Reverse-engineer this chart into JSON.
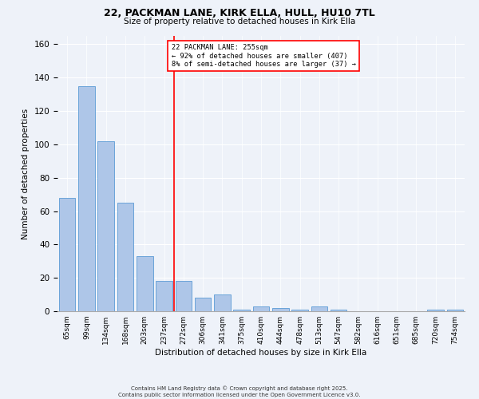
{
  "title": "22, PACKMAN LANE, KIRK ELLA, HULL, HU10 7TL",
  "subtitle": "Size of property relative to detached houses in Kirk Ella",
  "xlabel": "Distribution of detached houses by size in Kirk Ella",
  "ylabel": "Number of detached properties",
  "categories": [
    "65sqm",
    "99sqm",
    "134sqm",
    "168sqm",
    "203sqm",
    "237sqm",
    "272sqm",
    "306sqm",
    "341sqm",
    "375sqm",
    "410sqm",
    "444sqm",
    "478sqm",
    "513sqm",
    "547sqm",
    "582sqm",
    "616sqm",
    "651sqm",
    "685sqm",
    "720sqm",
    "754sqm"
  ],
  "values": [
    68,
    135,
    102,
    65,
    33,
    18,
    18,
    8,
    10,
    1,
    3,
    2,
    1,
    3,
    1,
    0,
    0,
    0,
    0,
    1,
    1
  ],
  "bar_color": "#aec6e8",
  "bar_edge_color": "#5b9bd5",
  "annotation_line1": "22 PACKMAN LANE: 255sqm",
  "annotation_line2": "← 92% of detached houses are smaller (407)",
  "annotation_line3": "8% of semi-detached houses are larger (37) →",
  "ylim": [
    0,
    165
  ],
  "yticks": [
    0,
    20,
    40,
    60,
    80,
    100,
    120,
    140,
    160
  ],
  "footnote1": "Contains HM Land Registry data © Crown copyright and database right 2025.",
  "footnote2": "Contains public sector information licensed under the Open Government Licence v3.0.",
  "bg_color": "#eef2f9"
}
